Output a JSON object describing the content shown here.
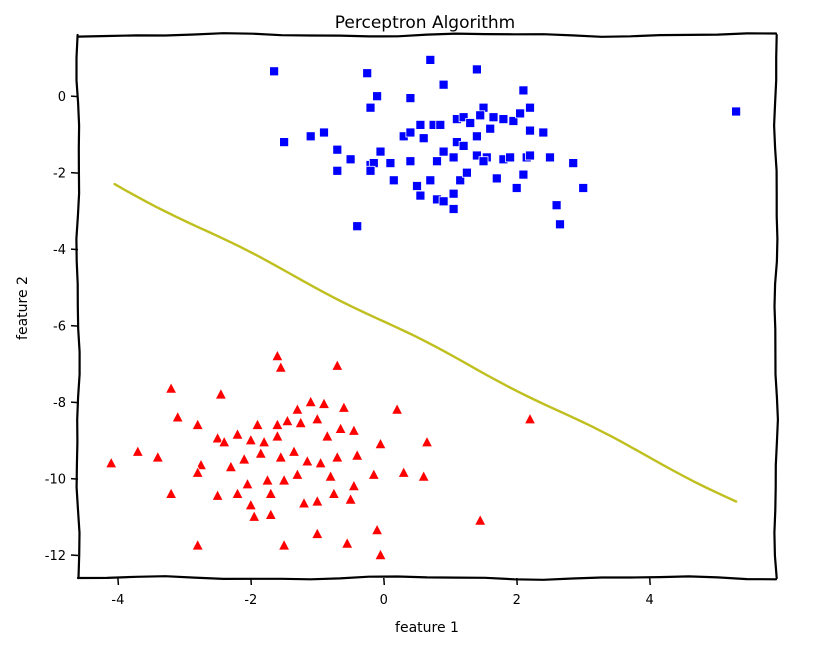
{
  "chart_data": {
    "type": "scatter",
    "title": "Perceptron Algorithm",
    "xlabel": "feature 1",
    "ylabel": "feature 2",
    "xlim": [
      -4.6,
      5.9
    ],
    "ylim": [
      -12.6,
      1.6
    ],
    "xticks": [
      -4,
      -2,
      0,
      2,
      4
    ],
    "yticks": [
      0,
      -2,
      -4,
      -6,
      -8,
      -10,
      -12
    ],
    "grid": false,
    "legend": "none",
    "style": "xkcd",
    "colors": {
      "class_pos": "#0000ff",
      "class_neg": "#ff0000",
      "boundary": "#bfbf1f"
    },
    "series": [
      {
        "marker": "square",
        "color": "#0000ff",
        "points": [
          [
            -1.65,
            0.65
          ],
          [
            -0.25,
            0.6
          ],
          [
            0.7,
            0.95
          ],
          [
            1.4,
            0.7
          ],
          [
            2.1,
            0.15
          ],
          [
            5.3,
            -0.4
          ],
          [
            -0.2,
            -0.3
          ],
          [
            -0.1,
            0.0
          ],
          [
            0.4,
            -0.05
          ],
          [
            0.9,
            0.3
          ],
          [
            1.5,
            -0.3
          ],
          [
            2.2,
            -0.3
          ],
          [
            -1.5,
            -1.2
          ],
          [
            -1.1,
            -1.05
          ],
          [
            -0.9,
            -0.95
          ],
          [
            -0.7,
            -1.4
          ],
          [
            -0.5,
            -1.65
          ],
          [
            -0.2,
            -1.8
          ],
          [
            -0.05,
            -1.45
          ],
          [
            0.3,
            -1.05
          ],
          [
            0.4,
            -0.95
          ],
          [
            0.55,
            -0.75
          ],
          [
            0.75,
            -0.75
          ],
          [
            0.85,
            -0.75
          ],
          [
            1.1,
            -0.6
          ],
          [
            1.2,
            -0.55
          ],
          [
            1.3,
            -0.7
          ],
          [
            1.45,
            -0.5
          ],
          [
            1.65,
            -0.55
          ],
          [
            1.8,
            -0.6
          ],
          [
            1.95,
            -0.65
          ],
          [
            2.05,
            -0.45
          ],
          [
            2.2,
            -0.9
          ],
          [
            2.4,
            -0.95
          ],
          [
            1.6,
            -0.85
          ],
          [
            1.4,
            -1.05
          ],
          [
            1.1,
            -1.2
          ],
          [
            0.9,
            -1.45
          ],
          [
            1.05,
            -1.6
          ],
          [
            0.8,
            -1.7
          ],
          [
            0.4,
            -1.7
          ],
          [
            0.1,
            -1.75
          ],
          [
            -0.15,
            -1.75
          ],
          [
            -0.2,
            -1.95
          ],
          [
            -0.7,
            -1.95
          ],
          [
            0.15,
            -2.2
          ],
          [
            0.5,
            -2.35
          ],
          [
            0.55,
            -2.6
          ],
          [
            0.7,
            -2.2
          ],
          [
            0.8,
            -2.7
          ],
          [
            0.9,
            -2.75
          ],
          [
            1.05,
            -2.55
          ],
          [
            1.05,
            -2.95
          ],
          [
            1.15,
            -2.2
          ],
          [
            1.25,
            -2.0
          ],
          [
            1.4,
            -1.55
          ],
          [
            1.55,
            -1.6
          ],
          [
            1.7,
            -2.15
          ],
          [
            1.8,
            -1.65
          ],
          [
            1.9,
            -1.6
          ],
          [
            2.0,
            -2.4
          ],
          [
            2.1,
            -2.05
          ],
          [
            2.15,
            -1.6
          ],
          [
            2.2,
            -1.55
          ],
          [
            2.5,
            -1.6
          ],
          [
            2.85,
            -1.75
          ],
          [
            3.0,
            -2.4
          ],
          [
            2.6,
            -2.85
          ],
          [
            2.65,
            -3.35
          ],
          [
            -0.4,
            -3.4
          ],
          [
            1.5,
            -1.7
          ],
          [
            1.2,
            -1.3
          ],
          [
            0.6,
            -1.1
          ]
        ]
      },
      {
        "marker": "triangle",
        "color": "#ff0000",
        "points": [
          [
            -1.6,
            -6.8
          ],
          [
            -1.55,
            -7.1
          ],
          [
            -0.7,
            -7.05
          ],
          [
            -3.2,
            -7.65
          ],
          [
            -2.45,
            -7.8
          ],
          [
            -3.1,
            -8.4
          ],
          [
            -2.8,
            -8.6
          ],
          [
            -1.9,
            -8.6
          ],
          [
            -1.6,
            -8.6
          ],
          [
            -1.3,
            -8.2
          ],
          [
            -1.1,
            -8.0
          ],
          [
            -0.9,
            -8.05
          ],
          [
            -0.6,
            -8.15
          ],
          [
            0.2,
            -8.2
          ],
          [
            2.2,
            -8.45
          ],
          [
            -2.5,
            -8.95
          ],
          [
            -2.4,
            -9.05
          ],
          [
            -2.2,
            -8.85
          ],
          [
            -2.0,
            -9.0
          ],
          [
            -1.8,
            -9.05
          ],
          [
            -1.6,
            -8.9
          ],
          [
            -1.45,
            -8.5
          ],
          [
            -1.25,
            -8.55
          ],
          [
            -1.0,
            -8.45
          ],
          [
            -0.85,
            -8.9
          ],
          [
            -0.65,
            -8.7
          ],
          [
            -0.45,
            -8.75
          ],
          [
            -0.05,
            -9.1
          ],
          [
            0.65,
            -9.05
          ],
          [
            -3.4,
            -9.45
          ],
          [
            -3.7,
            -9.3
          ],
          [
            -4.1,
            -9.6
          ],
          [
            -2.75,
            -9.65
          ],
          [
            -2.1,
            -9.5
          ],
          [
            -1.85,
            -9.35
          ],
          [
            -1.55,
            -9.45
          ],
          [
            -1.35,
            -9.3
          ],
          [
            -1.15,
            -9.55
          ],
          [
            -0.95,
            -9.6
          ],
          [
            -0.7,
            -9.45
          ],
          [
            -0.4,
            -9.4
          ],
          [
            0.3,
            -9.85
          ],
          [
            0.6,
            -9.95
          ],
          [
            -2.8,
            -9.85
          ],
          [
            -2.3,
            -9.7
          ],
          [
            -2.05,
            -10.15
          ],
          [
            -1.75,
            -10.05
          ],
          [
            -1.5,
            -10.05
          ],
          [
            -1.3,
            -9.9
          ],
          [
            -0.8,
            -9.95
          ],
          [
            -0.45,
            -10.2
          ],
          [
            -0.15,
            -9.9
          ],
          [
            -3.2,
            -10.4
          ],
          [
            -2.5,
            -10.45
          ],
          [
            -2.2,
            -10.4
          ],
          [
            -2.0,
            -10.7
          ],
          [
            -1.7,
            -10.4
          ],
          [
            -1.2,
            -10.65
          ],
          [
            -1.0,
            -10.6
          ],
          [
            -0.75,
            -10.4
          ],
          [
            -0.5,
            -10.55
          ],
          [
            -1.95,
            -11.0
          ],
          [
            -1.7,
            -10.95
          ],
          [
            -2.8,
            -11.75
          ],
          [
            -1.5,
            -11.75
          ],
          [
            -1.0,
            -11.45
          ],
          [
            -0.55,
            -11.7
          ],
          [
            -0.1,
            -11.35
          ],
          [
            -0.05,
            -12.0
          ],
          [
            1.45,
            -11.1
          ]
        ]
      }
    ],
    "boundary_line": [
      [
        -4.05,
        -2.3
      ],
      [
        5.3,
        -10.6
      ]
    ]
  }
}
